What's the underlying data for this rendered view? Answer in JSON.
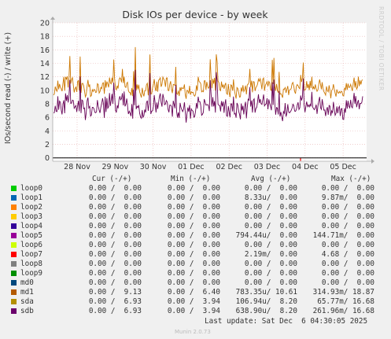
{
  "chart_data": {
    "type": "line",
    "title": "Disk IOs per device - by week",
    "ylabel": "IOs/second read (-) / write (+)",
    "ylim": [
      -0.5,
      20
    ],
    "yticks": [
      0,
      2,
      4,
      6,
      8,
      10,
      12,
      14,
      16,
      18,
      20
    ],
    "xticks": [
      "28 Nov",
      "29 Nov",
      "30 Nov",
      "01 Dec",
      "02 Dec",
      "03 Dec",
      "04 Dec",
      "05 Dec"
    ],
    "grid": true,
    "series_colors": {
      "md1": "#cc7700",
      "sdb": "#660055"
    },
    "side_label": "RRDTOOL / TOBI OETIKER"
  },
  "legend": {
    "headers": {
      "cur": "Cur (-/+)",
      "min": "Min (-/+)",
      "avg": "Avg (-/+)",
      "max": "Max (-/+)"
    },
    "rows": [
      {
        "name": "loop0",
        "color": "#00cc00",
        "cur": "0.00 /  0.00",
        "min": "0.00 /  0.00",
        "avg": "0.00 /  0.00",
        "max": "0.00 /  0.00"
      },
      {
        "name": "loop1",
        "color": "#0066b3",
        "cur": "0.00 /  0.00",
        "min": "0.00 /  0.00",
        "avg": "8.33u/  0.00",
        "max": "9.87m/  0.00"
      },
      {
        "name": "loop2",
        "color": "#ff8000",
        "cur": "0.00 /  0.00",
        "min": "0.00 /  0.00",
        "avg": "0.00 /  0.00",
        "max": "0.00 /  0.00"
      },
      {
        "name": "loop3",
        "color": "#ffcc00",
        "cur": "0.00 /  0.00",
        "min": "0.00 /  0.00",
        "avg": "0.00 /  0.00",
        "max": "0.00 /  0.00"
      },
      {
        "name": "loop4",
        "color": "#330099",
        "cur": "0.00 /  0.00",
        "min": "0.00 /  0.00",
        "avg": "0.00 /  0.00",
        "max": "0.00 /  0.00"
      },
      {
        "name": "loop5",
        "color": "#990099",
        "cur": "0.00 /  0.00",
        "min": "0.00 /  0.00",
        "avg": "794.44u/  0.00",
        "max": "144.71m/  0.00"
      },
      {
        "name": "loop6",
        "color": "#ccff00",
        "cur": "0.00 /  0.00",
        "min": "0.00 /  0.00",
        "avg": "0.00 /  0.00",
        "max": "0.00 /  0.00"
      },
      {
        "name": "loop7",
        "color": "#ff0000",
        "cur": "0.00 /  0.00",
        "min": "0.00 /  0.00",
        "avg": "2.19m/  0.00",
        "max": "4.68 /  0.00"
      },
      {
        "name": "loop8",
        "color": "#808080",
        "cur": "0.00 /  0.00",
        "min": "0.00 /  0.00",
        "avg": "0.00 /  0.00",
        "max": "0.00 /  0.00"
      },
      {
        "name": "loop9",
        "color": "#008f00",
        "cur": "0.00 /  0.00",
        "min": "0.00 /  0.00",
        "avg": "0.00 /  0.00",
        "max": "0.00 /  0.00"
      },
      {
        "name": "md0",
        "color": "#00487d",
        "cur": "0.00 /  0.00",
        "min": "0.00 /  0.00",
        "avg": "0.00 /  0.00",
        "max": "0.00 /  0.00"
      },
      {
        "name": "md1",
        "color": "#b35a00",
        "cur": "0.00 /  9.13",
        "min": "0.00 /  6.40",
        "avg": "783.35u/ 10.61",
        "max": "314.93m/ 18.87"
      },
      {
        "name": "sda",
        "color": "#b38f00",
        "cur": "0.00 /  6.93",
        "min": "0.00 /  3.94",
        "avg": "106.94u/  8.20",
        "max": "65.77m/ 16.68"
      },
      {
        "name": "sdb",
        "color": "#6b006b",
        "cur": "0.00 /  6.93",
        "min": "0.00 /  3.94",
        "avg": "638.90u/  8.20",
        "max": "261.96m/ 16.68"
      }
    ]
  },
  "footer": {
    "last_update": "Last update: Sat Dec  6 04:30:05 2025",
    "munin": "Munin 2.0.73"
  }
}
